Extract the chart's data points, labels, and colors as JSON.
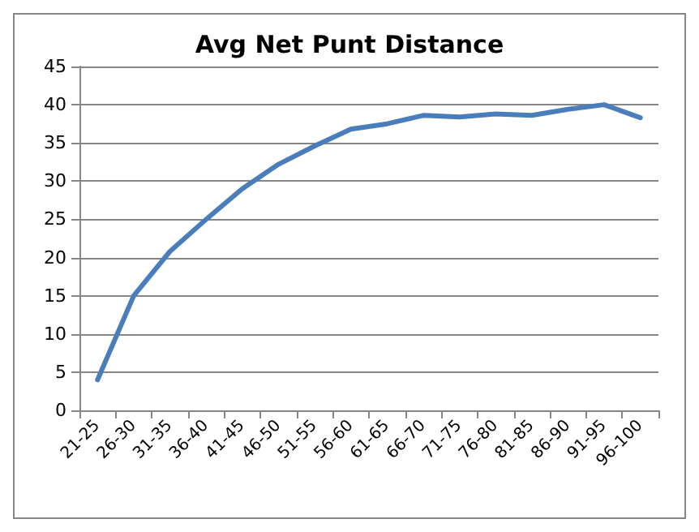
{
  "chart_data": {
    "type": "line",
    "title": "Avg Net Punt Distance",
    "categories": [
      "21-25",
      "26-30",
      "31-35",
      "36-40",
      "41-45",
      "46-50",
      "51-55",
      "56-60",
      "61-65",
      "66-70",
      "71-75",
      "76-80",
      "81-85",
      "86-90",
      "91-95",
      "96-100"
    ],
    "series": [
      {
        "color": "#4a7ebb",
        "values": [
          4,
          15,
          20.8,
          25,
          29,
          32.2,
          34.6,
          36.8,
          37.5,
          38.6,
          38.4,
          38.8,
          38.6,
          39.4,
          40,
          38.3
        ]
      }
    ],
    "ylim": [
      0,
      45
    ],
    "yticks": [
      0,
      5,
      10,
      15,
      20,
      25,
      30,
      35,
      40,
      45
    ],
    "grid": "y",
    "marker": "none",
    "line_style": "solid"
  }
}
